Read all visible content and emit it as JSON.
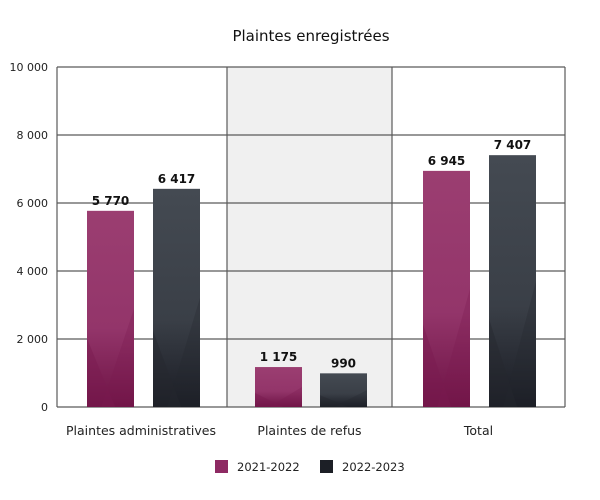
{
  "chart_data": {
    "type": "bar",
    "title": "Plaintes enregistrées",
    "xlabel": "",
    "ylabel": "",
    "ylim": [
      0,
      10000
    ],
    "yticks": [
      0,
      2000,
      4000,
      6000,
      8000,
      10000
    ],
    "ytick_labels": [
      "0",
      "2 000",
      "4 000",
      "6 000",
      "8 000",
      "10 000"
    ],
    "categories": [
      "Plaintes administratives",
      "Plaintes de refus",
      "Total"
    ],
    "shaded_categories": [
      "Plaintes de refus"
    ],
    "grid": true,
    "legend_position": "bottom-center",
    "series": [
      {
        "name": "2021-2022",
        "color": "#8e2a63",
        "values": [
          5770,
          1175,
          6945
        ],
        "labels": [
          "5 770",
          "1 175",
          "6 945"
        ]
      },
      {
        "name": "2022-2023",
        "color": "#1c1f26",
        "values": [
          6417,
          990,
          7407
        ],
        "labels": [
          "6 417",
          "990",
          "7 407"
        ]
      }
    ]
  }
}
